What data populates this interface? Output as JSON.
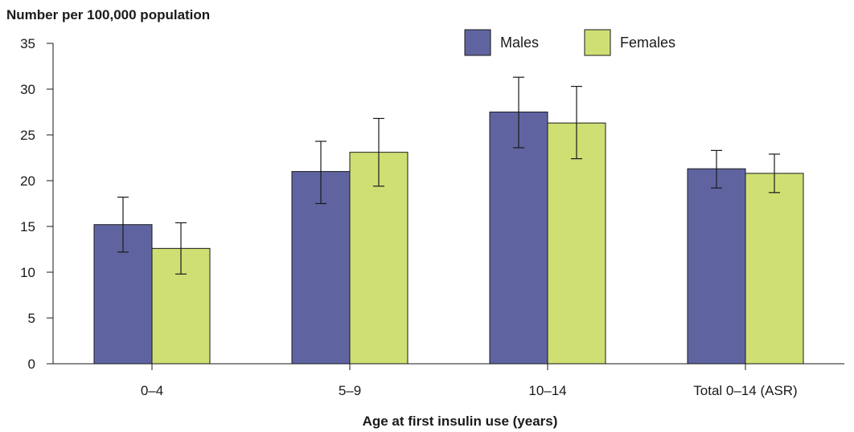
{
  "chart_data": {
    "type": "bar",
    "ylabel": "Number per 100,000 population",
    "xlabel": "Age at first insulin use (years)",
    "categories": [
      "0–4",
      "5–9",
      "10–14",
      "Total 0–14 (ASR)"
    ],
    "ylim": [
      0,
      35
    ],
    "yticks": [
      "0",
      "5",
      "10",
      "15",
      "20",
      "25",
      "30",
      "35"
    ],
    "grid": false,
    "legend_position": "top-right",
    "series": [
      {
        "name": "Males",
        "color": "#5f64a1",
        "values": [
          15.2,
          21.0,
          27.5,
          21.3
        ],
        "error_low": [
          12.2,
          17.5,
          23.6,
          19.2
        ],
        "error_high": [
          18.2,
          24.3,
          31.3,
          23.3
        ]
      },
      {
        "name": "Females",
        "color": "#cfdf73",
        "values": [
          12.6,
          23.1,
          26.3,
          20.8
        ],
        "error_low": [
          9.8,
          19.4,
          22.4,
          18.7
        ],
        "error_high": [
          15.4,
          26.8,
          30.3,
          22.9
        ]
      }
    ]
  }
}
